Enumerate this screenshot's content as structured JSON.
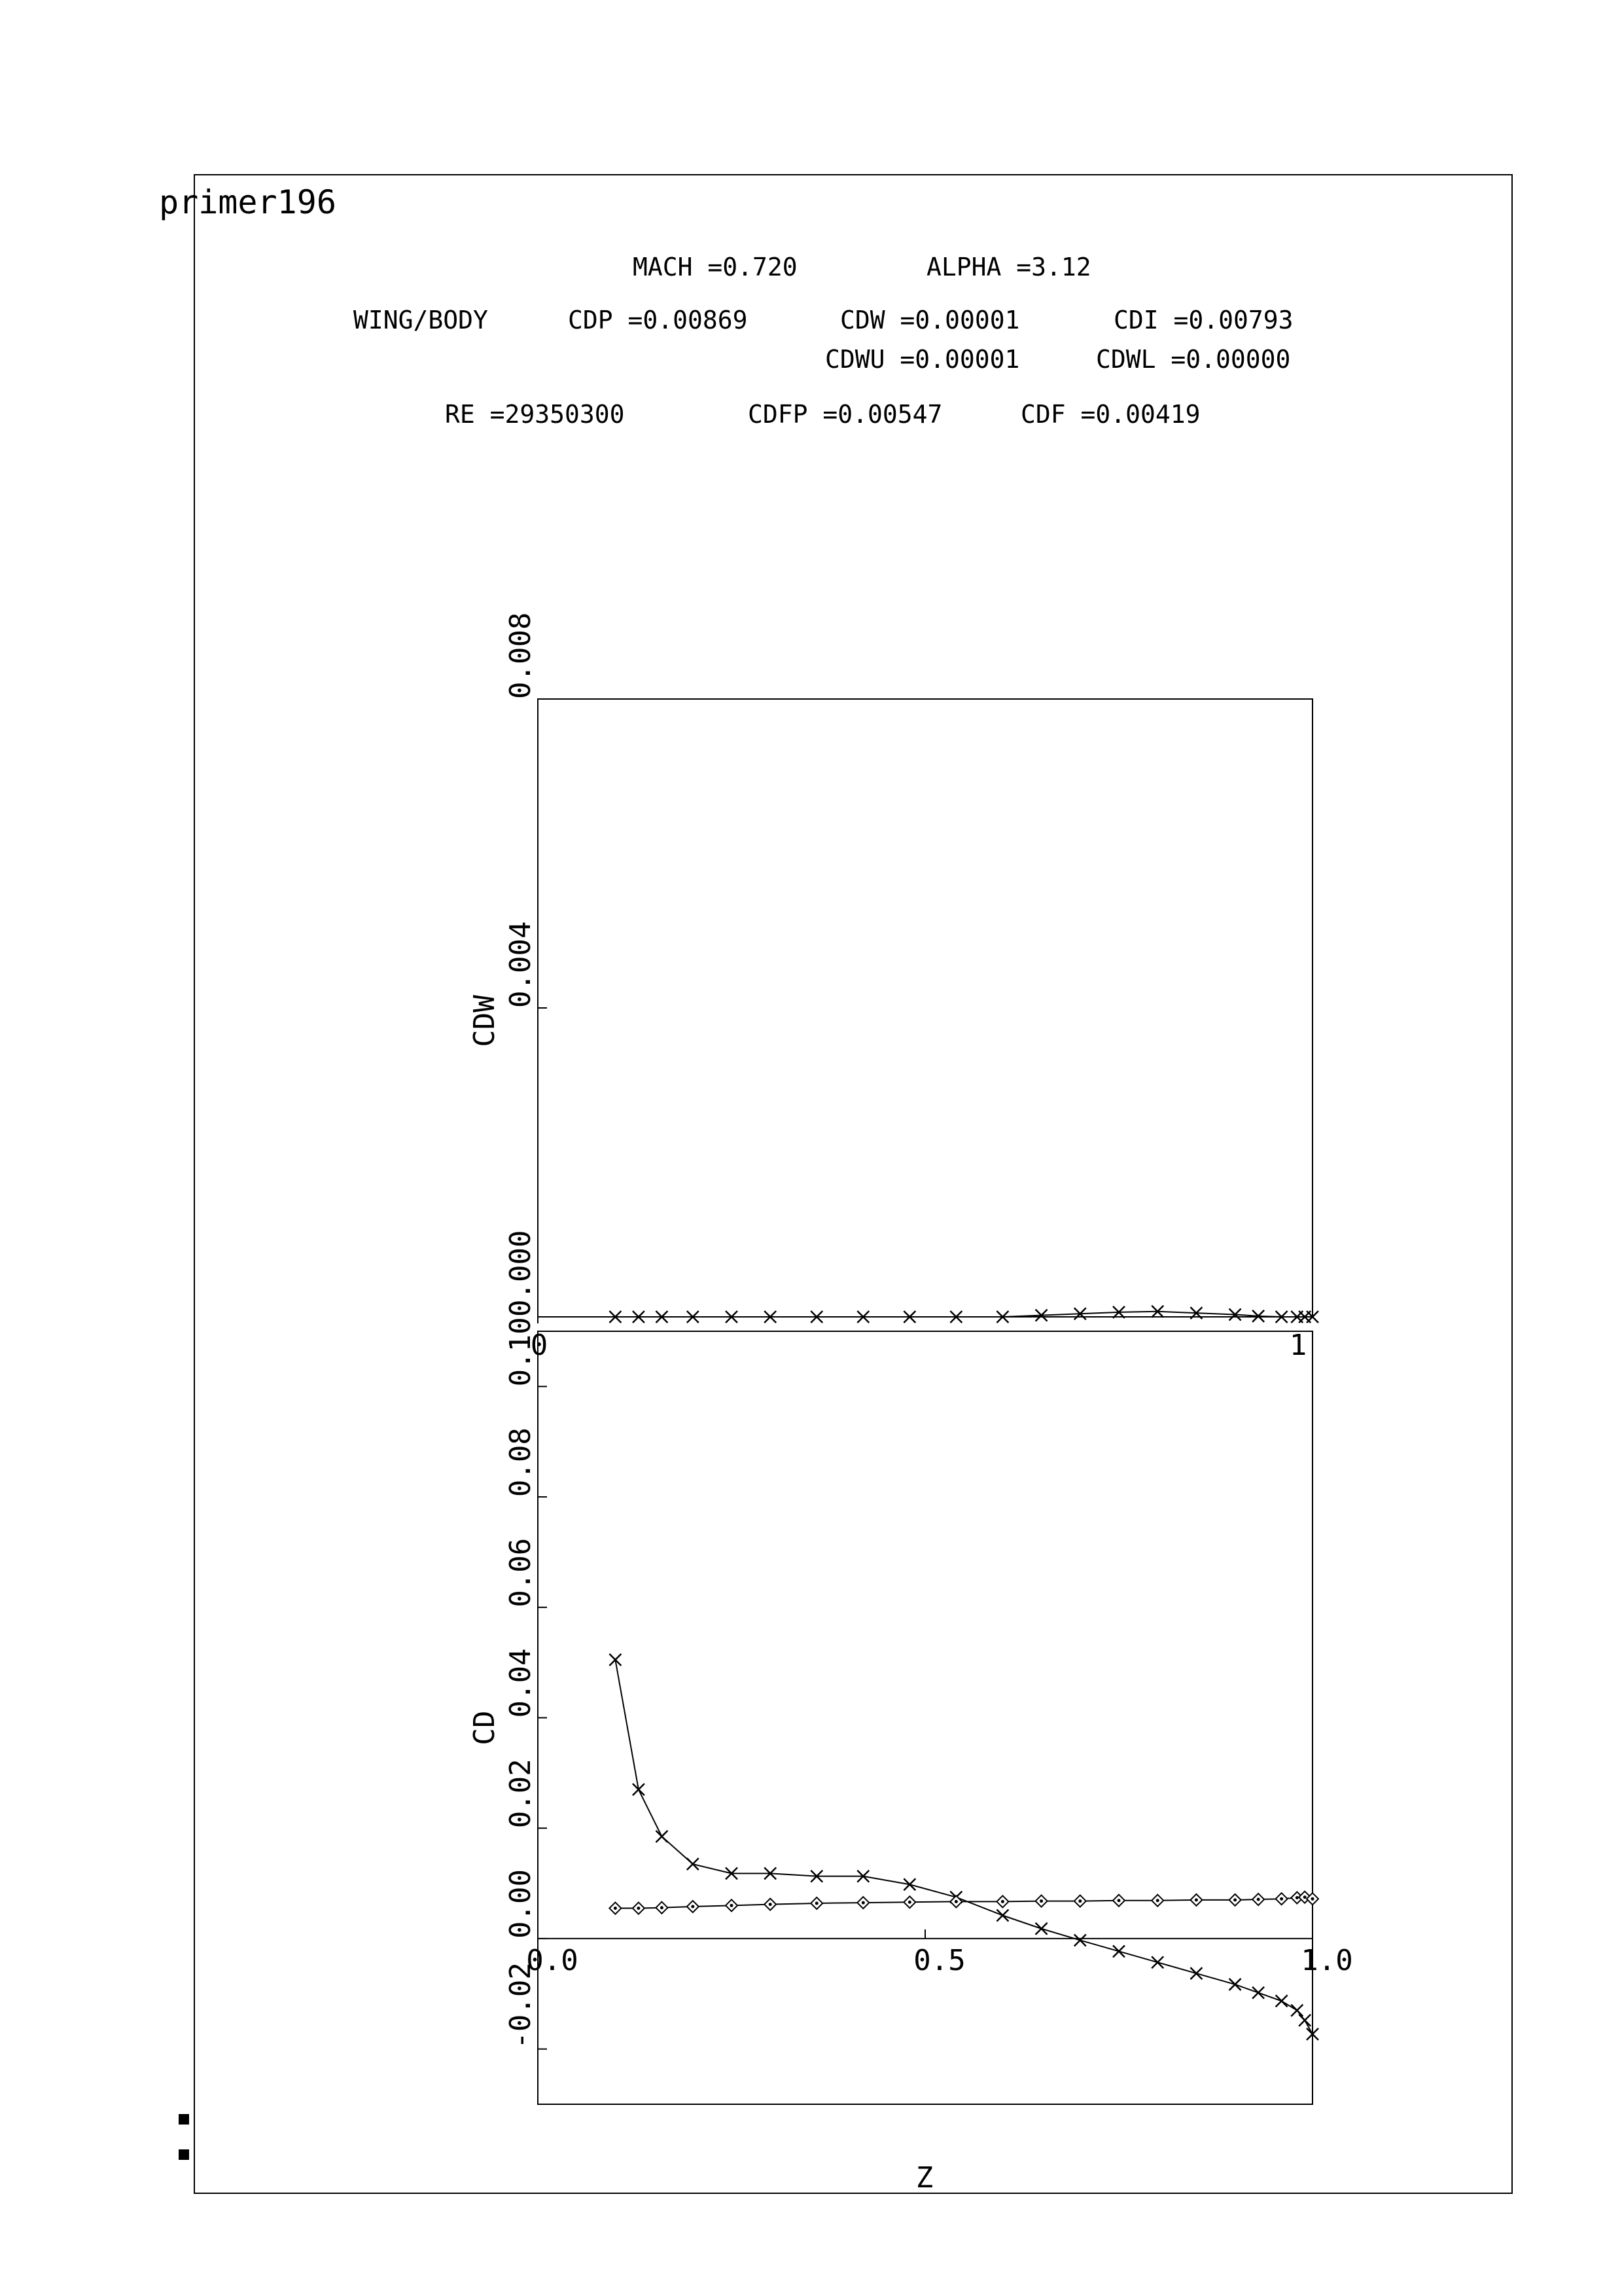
{
  "title": "primer196",
  "header": {
    "mach": "MACH =0.720",
    "alpha": "ALPHA =3.12",
    "config": "WING/BODY",
    "cdp": "CDP =0.00869",
    "cdw": "CDW =0.00001",
    "cdi": "CDI =0.00793",
    "cdwu": "CDWU =0.00001",
    "cdwl": "CDWL =0.00000",
    "re": "RE =29350300",
    "cdfp": "CDFP =0.00547",
    "cdf": "CDF =0.00419"
  },
  "chart_data": [
    {
      "type": "line",
      "ylabel": "CDW",
      "xlim": [
        0,
        1
      ],
      "ylim": [
        0,
        0.008
      ],
      "yticks": [
        "0.000",
        "0.004",
        "0.008"
      ],
      "xticks": [
        "0",
        "1"
      ],
      "series": [
        {
          "marker": "x",
          "x": [
            0.1,
            0.13,
            0.16,
            0.2,
            0.25,
            0.3,
            0.36,
            0.42,
            0.48,
            0.54,
            0.6,
            0.65,
            0.7,
            0.75,
            0.8,
            0.85,
            0.9,
            0.93,
            0.96,
            0.98,
            0.99,
            1.0
          ],
          "y": [
            0,
            0,
            0,
            0,
            0,
            0,
            0,
            0,
            0,
            0,
            0,
            2e-05,
            4e-05,
            6e-05,
            7e-05,
            5e-05,
            3e-05,
            1e-05,
            0,
            0,
            0,
            0
          ]
        }
      ]
    },
    {
      "type": "line",
      "ylabel": "CD",
      "xlabel": "Z",
      "xlim": [
        0,
        1
      ],
      "ylim": [
        -0.03,
        0.11
      ],
      "yticks": [
        "-0.02",
        "0.00",
        "0.02",
        "0.04",
        "0.06",
        "0.08",
        "0.10"
      ],
      "xticks": [
        "0.0",
        "0.5",
        "1.0"
      ],
      "series": [
        {
          "marker": "x",
          "x": [
            0.1,
            0.13,
            0.16,
            0.2,
            0.25,
            0.3,
            0.36,
            0.42,
            0.48,
            0.54,
            0.6,
            0.65,
            0.7,
            0.75,
            0.8,
            0.85,
            0.9,
            0.93,
            0.96,
            0.98,
            0.99,
            1.0
          ],
          "y": [
            0.0505,
            0.027,
            0.0185,
            0.0135,
            0.0118,
            0.0118,
            0.0113,
            0.0113,
            0.0098,
            0.0075,
            0.0042,
            0.0018,
            -0.0003,
            -0.0023,
            -0.0043,
            -0.0063,
            -0.0083,
            -0.0098,
            -0.0113,
            -0.013,
            -0.0148,
            -0.0173
          ]
        },
        {
          "marker": "diamond",
          "x": [
            0.1,
            0.13,
            0.16,
            0.2,
            0.25,
            0.3,
            0.36,
            0.42,
            0.48,
            0.54,
            0.6,
            0.65,
            0.7,
            0.75,
            0.8,
            0.85,
            0.9,
            0.93,
            0.96,
            0.98,
            0.99,
            1.0
          ],
          "y": [
            0.0055,
            0.0055,
            0.0056,
            0.0058,
            0.006,
            0.0062,
            0.0064,
            0.0065,
            0.0066,
            0.0067,
            0.0067,
            0.0068,
            0.0068,
            0.0069,
            0.0069,
            0.007,
            0.007,
            0.0071,
            0.0072,
            0.0074,
            0.0075,
            0.0072
          ]
        }
      ]
    }
  ]
}
